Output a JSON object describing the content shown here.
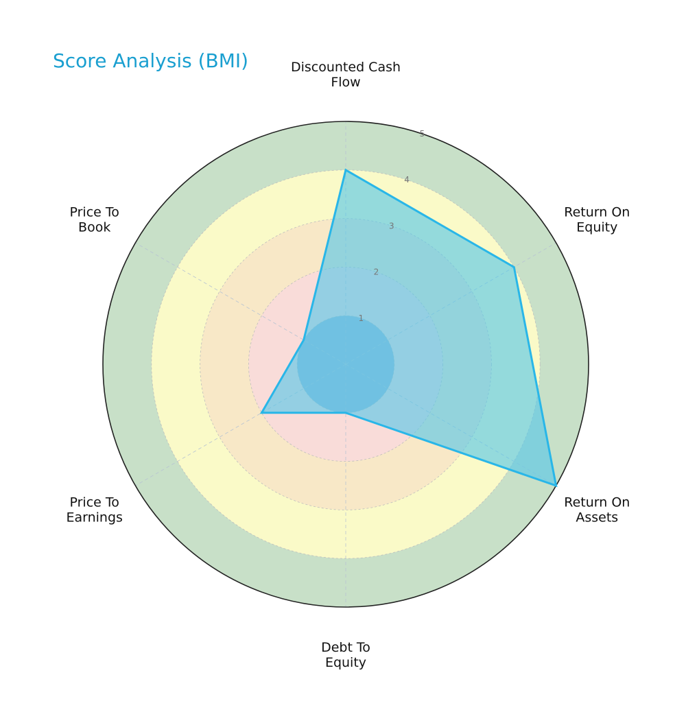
{
  "chart_data": {
    "type": "radar",
    "title": "Score Analysis (BMI)",
    "axes": [
      {
        "key": "discounted-cash-flow",
        "lines": [
          "Discounted Cash",
          "Flow"
        ]
      },
      {
        "key": "return-on-equity",
        "lines": [
          "Return On",
          "Equity"
        ]
      },
      {
        "key": "return-on-assets",
        "lines": [
          "Return On",
          "Assets"
        ]
      },
      {
        "key": "debt-to-equity",
        "lines": [
          "Debt To",
          "Equity"
        ]
      },
      {
        "key": "price-to-earnings",
        "lines": [
          "Price To",
          "Earnings"
        ]
      },
      {
        "key": "price-to-book",
        "lines": [
          "Price To",
          "Book"
        ]
      }
    ],
    "values": [
      4,
      4,
      5,
      1,
      2,
      1
    ],
    "rlim": [
      0,
      5
    ],
    "ticks": [
      "1",
      "2",
      "3",
      "4",
      "5"
    ],
    "bands": [
      {
        "from": 0,
        "to": 1,
        "color": "#9bb8d8"
      },
      {
        "from": 1,
        "to": 2,
        "color": "#f9dcd9"
      },
      {
        "from": 2,
        "to": 3,
        "color": "#f8e8c7"
      },
      {
        "from": 3,
        "to": 4,
        "color": "#fafac8"
      },
      {
        "from": 4,
        "to": 5,
        "color": "#c8e0c8"
      }
    ],
    "series_color": "#29b6e8",
    "fill_color": "#55c7e8",
    "grid": true
  }
}
